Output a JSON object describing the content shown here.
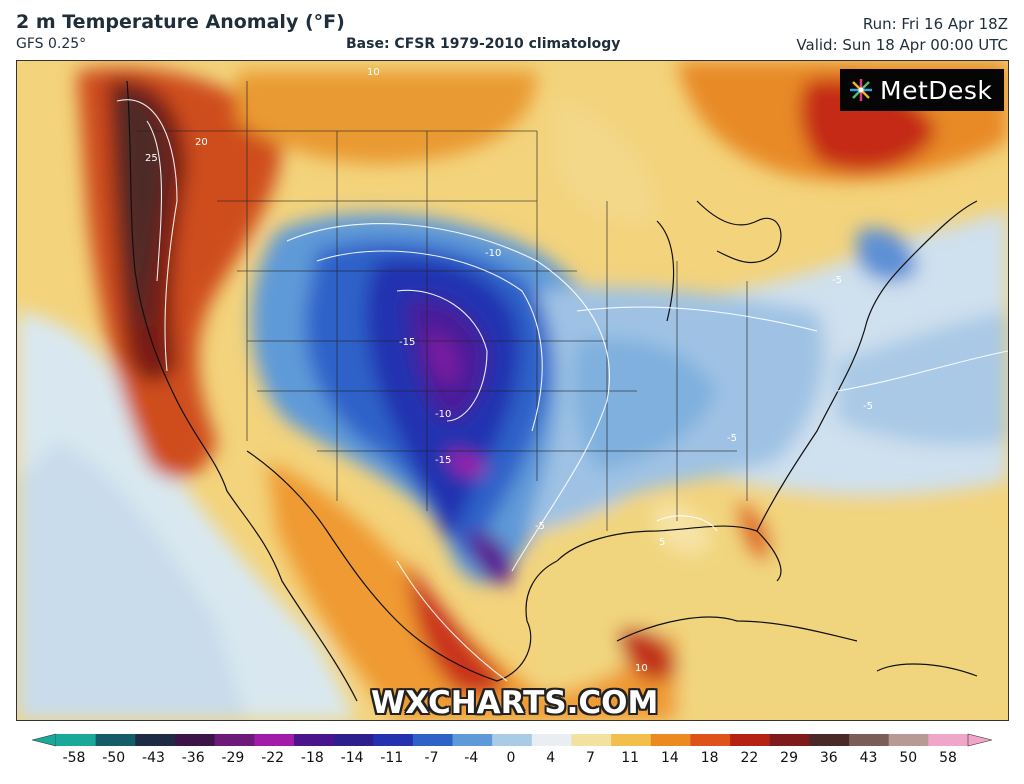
{
  "header": {
    "title": "2 m Temperature Anomaly (°F)",
    "model": "GFS 0.25°",
    "base": "Base: CFSR 1979-2010 climatology",
    "run": "Run: Fri 16 Apr 18Z",
    "valid": "Valid: Sun 18 Apr 00:00 UTC"
  },
  "brand": {
    "name": "MetDesk"
  },
  "watermark": "WXCHARTS.COM",
  "colorbar": {
    "ticks": [
      "-58",
      "-50",
      "-43",
      "-36",
      "-29",
      "-22",
      "-18",
      "-14",
      "-11",
      "-7",
      "-4",
      "0",
      "4",
      "7",
      "11",
      "14",
      "18",
      "22",
      "29",
      "36",
      "43",
      "50",
      "58"
    ],
    "colors": [
      "#1aa898",
      "#145d68",
      "#1d2b44",
      "#3c1448",
      "#6d1a78",
      "#a21ca8",
      "#4a148c",
      "#2e1f8f",
      "#2432b0",
      "#2f62c9",
      "#5e9ad8",
      "#aacbe6",
      "#e8eef2",
      "#f3e1a0",
      "#f2be4c",
      "#ec8a22",
      "#de531a",
      "#b32415",
      "#7e1b1b",
      "#4a2a26",
      "#7a5d57",
      "#b89a94",
      "#f0a6c8"
    ]
  },
  "contour_labels": [
    "10",
    "25",
    "20",
    "-10",
    "-15",
    "-10",
    "-15",
    "-5",
    "-5",
    "-5",
    "5",
    "10",
    "-5"
  ],
  "icons": {
    "brand_logo": "starburst-logo-icon",
    "left_arrow": "colorbar-left-arrow-icon",
    "right_arrow": "colorbar-right-arrow-icon"
  }
}
